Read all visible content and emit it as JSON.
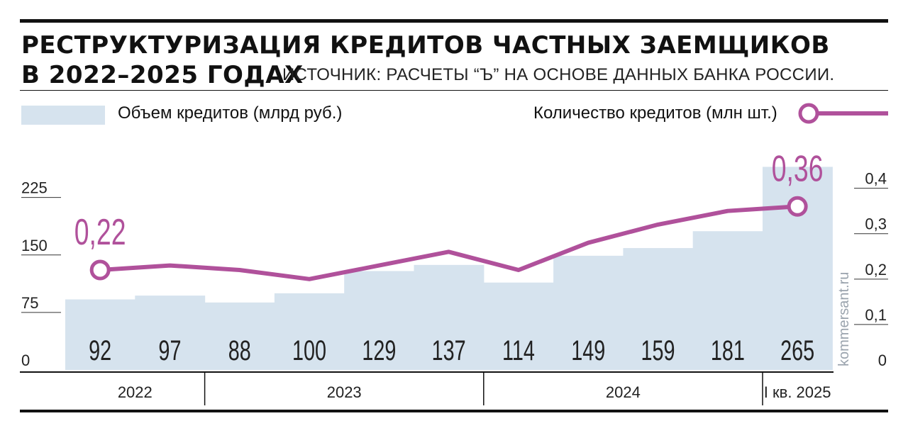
{
  "header": {
    "title_line1": "РЕСТРУКТУРИЗАЦИЯ КРЕДИТОВ ЧАСТНЫХ ЗАЕМЩИКОВ",
    "title_line2": "В 2022–2025 ГОДАХ",
    "source": "ИСТОЧНИК: РАСЧЕТЫ “Ъ” НА ОСНОВЕ ДАННЫХ БАНКА РОССИИ."
  },
  "legend": {
    "bars_label": "Объем кредитов (млрд руб.)",
    "line_label": "Количество кредитов (млн шт.)"
  },
  "credit": "kommersant.ru",
  "colors": {
    "bar": "#d6e3ee",
    "line": "#b0519b",
    "text": "#222222"
  },
  "chart_data": {
    "type": "bar",
    "bar_values": [
      92,
      97,
      88,
      100,
      129,
      137,
      114,
      149,
      159,
      181,
      265
    ],
    "line_values": [
      0.22,
      0.23,
      0.22,
      0.2,
      0.23,
      0.26,
      0.22,
      0.28,
      0.32,
      0.35,
      0.36
    ],
    "annotations": [
      {
        "index": 0,
        "label": "0,22"
      },
      {
        "index": 10,
        "label": "0,36"
      }
    ],
    "groups": [
      {
        "label": "2022",
        "start": 0,
        "end": 1
      },
      {
        "label": "2023",
        "start": 2,
        "end": 5
      },
      {
        "label": "2024",
        "start": 6,
        "end": 9
      },
      {
        "label": "I кв. 2025",
        "start": 10,
        "end": 10
      }
    ],
    "left_axis": {
      "ticks": [
        "0",
        "75",
        "150",
        "225"
      ],
      "tick_values": [
        0,
        75,
        150,
        225
      ],
      "ylim": [
        0,
        270
      ]
    },
    "right_axis": {
      "ticks": [
        "0",
        "0,1",
        "0,2",
        "0,3",
        "0,4"
      ],
      "tick_values": [
        0,
        0.1,
        0.2,
        0.3,
        0.4
      ],
      "ylim": [
        0,
        0.44
      ]
    },
    "grid": false,
    "legend_position": "top"
  }
}
